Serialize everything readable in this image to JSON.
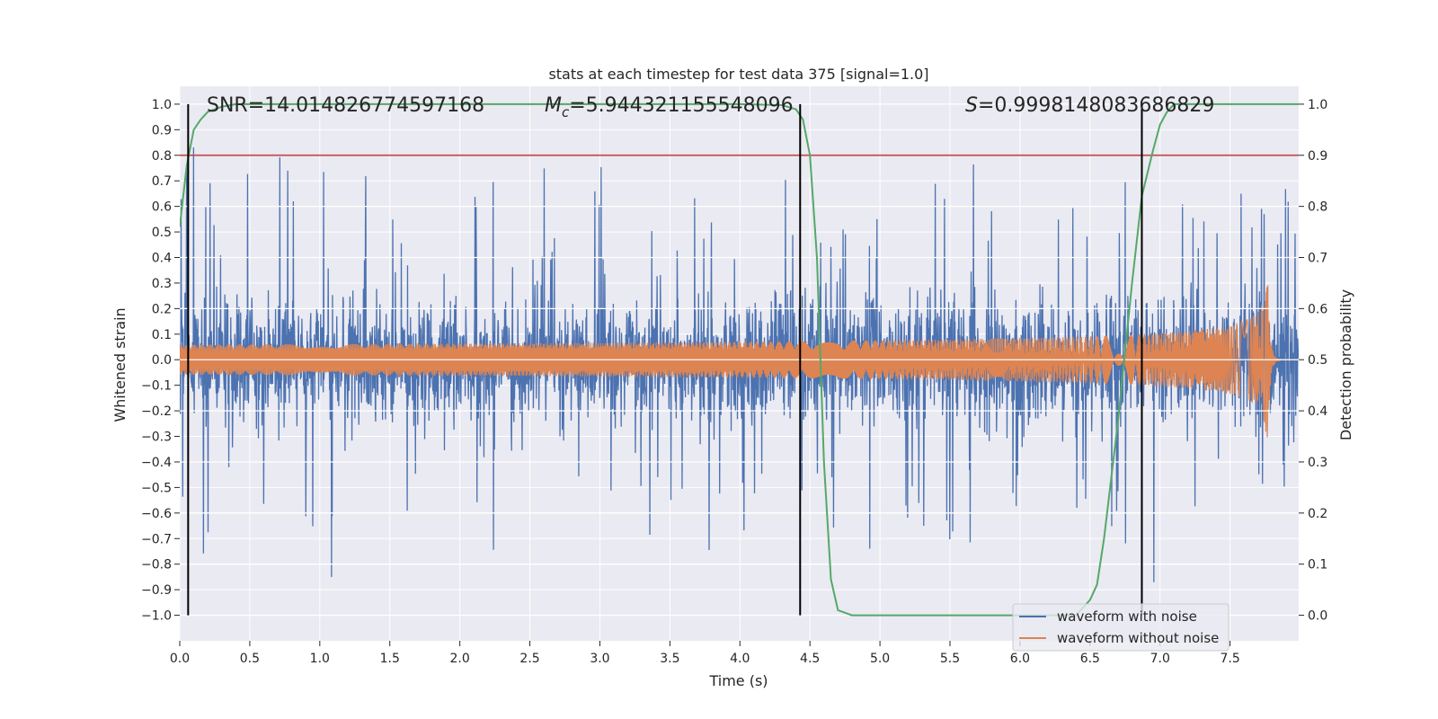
{
  "chart_data": {
    "type": "line",
    "title": "stats at each timestep for test data 375 [signal=1.0]",
    "xlabel": "Time (s)",
    "ylabel": "Whitened strain",
    "y2label": "Detection probability",
    "xlim": [
      0.0,
      7.99
    ],
    "ylim": [
      -1.1,
      1.07
    ],
    "y2lim": [
      -0.05,
      1.035
    ],
    "x_ticks": [
      "0.0",
      "0.5",
      "1.0",
      "1.5",
      "2.0",
      "2.5",
      "3.0",
      "3.5",
      "4.0",
      "4.5",
      "5.0",
      "5.5",
      "6.0",
      "6.5",
      "7.0",
      "7.5"
    ],
    "y_ticks": [
      "1.0",
      "0.9",
      "0.8",
      "0.7",
      "0.6",
      "0.5",
      "0.4",
      "0.3",
      "0.2",
      "0.1",
      "0.0",
      "−0.1",
      "−0.2",
      "−0.3",
      "−0.4",
      "−0.5",
      "−0.6",
      "−0.7",
      "−0.8",
      "−0.9",
      "−1.0"
    ],
    "y2_ticks": [
      "1.0",
      "0.9",
      "0.8",
      "0.7",
      "0.6",
      "0.5",
      "0.4",
      "0.3",
      "0.2",
      "0.1",
      "0.0"
    ],
    "annotations": {
      "snr": "SNR=14.014826774597168",
      "mc_symbol": "M",
      "mc_sub": "c",
      "mc_value": "=5.944321155548096",
      "s_symbol": "S",
      "s_value": "=0.9998148083686829"
    },
    "vertical_lines_x": [
      0.06,
      4.43,
      6.87
    ],
    "threshold_probability": 0.9,
    "series": [
      {
        "name": "waveform with noise",
        "color": "#4c72b0",
        "kind": "noise",
        "envelope": 0.4
      },
      {
        "name": "waveform without noise",
        "color": "#dd8452",
        "kind": "chirp",
        "merger_time": 7.77,
        "peak_amplitude": 0.39
      },
      {
        "name": "detection probability",
        "color": "#55a868",
        "axis": "right",
        "x": [
          0.0,
          0.05,
          0.1,
          0.15,
          0.2,
          0.3,
          0.4,
          0.6,
          1.0,
          2.0,
          3.0,
          4.0,
          4.3,
          4.4,
          4.45,
          4.5,
          4.55,
          4.6,
          4.65,
          4.7,
          4.8,
          5.0,
          6.0,
          6.4,
          6.5,
          6.55,
          6.6,
          6.7,
          6.8,
          6.87,
          6.95,
          7.0,
          7.05,
          7.1,
          7.2,
          7.99
        ],
        "y": [
          0.76,
          0.88,
          0.95,
          0.97,
          0.985,
          0.995,
          1.0,
          1.0,
          1.0,
          1.0,
          1.0,
          1.0,
          0.998,
          0.99,
          0.97,
          0.9,
          0.7,
          0.3,
          0.07,
          0.01,
          0.0,
          0.0,
          0.0,
          0.0,
          0.03,
          0.06,
          0.15,
          0.38,
          0.65,
          0.82,
          0.91,
          0.96,
          0.985,
          1.0,
          1.0,
          1.0
        ]
      },
      {
        "name": "threshold",
        "color": "#c44e52",
        "axis": "right",
        "value": 0.9
      }
    ],
    "legend": {
      "position": "lower-right",
      "entries": [
        "waveform with noise",
        "waveform without noise"
      ]
    }
  }
}
